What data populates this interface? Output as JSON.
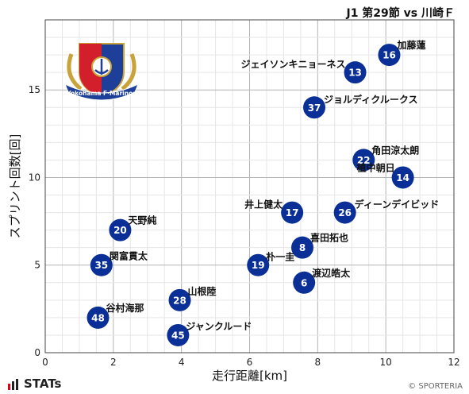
{
  "header": {
    "title": "J1 第29節 vs 川崎Ｆ"
  },
  "logo": {
    "text": "Yokohama F·Marinos"
  },
  "footer": {
    "brand": "STATs",
    "copyright": "© SPORTERIA"
  },
  "colors": {
    "marker": "#0a2f96",
    "marker_text": "#ffffff",
    "grid_major": "#b5b5b5",
    "grid_minor": "#e6e6e6"
  },
  "chart_data": {
    "type": "scatter",
    "xlabel": "走行距離[km]",
    "ylabel": "スプリント回数[回]",
    "xlim": [
      0,
      12
    ],
    "ylim": [
      0,
      19
    ],
    "xticks": [
      0,
      2,
      4,
      6,
      8,
      10,
      12
    ],
    "yticks": [
      0,
      5,
      10,
      15
    ],
    "grid": true,
    "points": [
      {
        "number": "16",
        "name": "加藤蓮",
        "x": 10.1,
        "y": 17
      },
      {
        "number": "13",
        "name": "ジェイソンキニョーネス",
        "x": 9.1,
        "y": 16
      },
      {
        "number": "37",
        "name": "ジョルディクルークス",
        "x": 7.9,
        "y": 14
      },
      {
        "number": "22",
        "name": "角田涼太朗",
        "x": 9.35,
        "y": 11
      },
      {
        "number": "14",
        "name": "植中朝日",
        "x": 10.5,
        "y": 10
      },
      {
        "number": "17",
        "name": "井上健太",
        "x": 7.25,
        "y": 8
      },
      {
        "number": "26",
        "name": "ディーンデイビッド",
        "x": 8.8,
        "y": 8
      },
      {
        "number": "20",
        "name": "天野純",
        "x": 2.2,
        "y": 7
      },
      {
        "number": "8",
        "name": "喜田拓也",
        "x": 7.55,
        "y": 6
      },
      {
        "number": "35",
        "name": "関富貫太",
        "x": 1.65,
        "y": 5
      },
      {
        "number": "19",
        "name": "朴一圭",
        "x": 6.25,
        "y": 5
      },
      {
        "number": "6",
        "name": "渡辺皓太",
        "x": 7.6,
        "y": 4
      },
      {
        "number": "28",
        "name": "山根陸",
        "x": 3.95,
        "y": 3
      },
      {
        "number": "48",
        "name": "谷村海那",
        "x": 1.55,
        "y": 2
      },
      {
        "number": "45",
        "name": "ジャンクルード",
        "x": 3.9,
        "y": 1
      }
    ]
  }
}
